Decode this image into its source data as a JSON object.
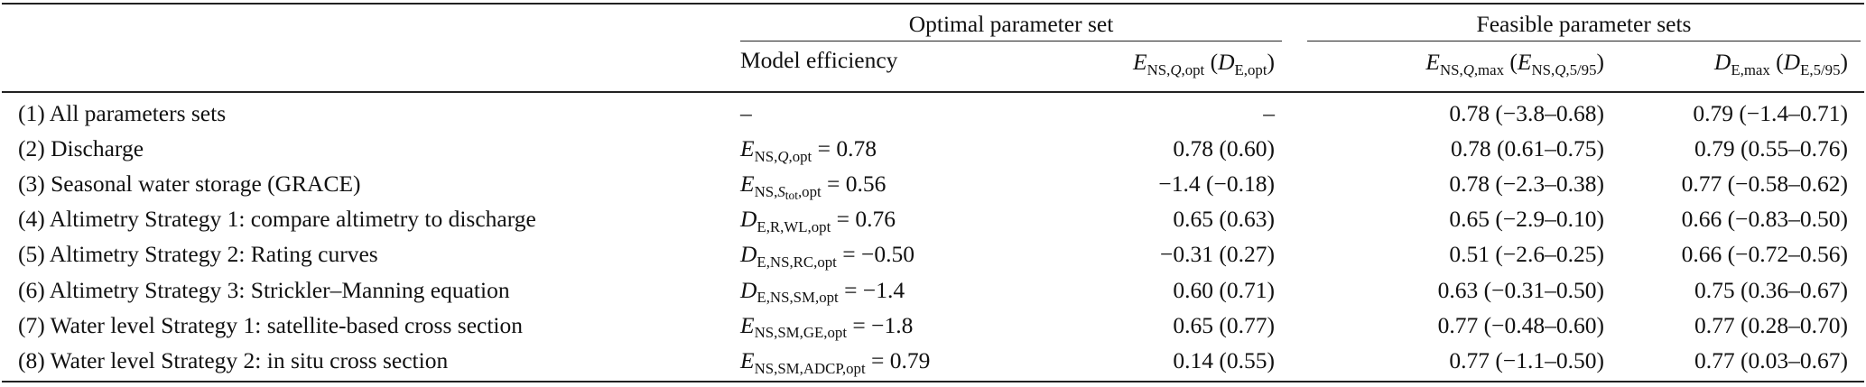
{
  "header": {
    "group_optimal": "Optimal parameter set",
    "group_feasible": "Feasible parameter sets",
    "col_model_efficiency": "Model efficiency",
    "col_ens_opt": "E_NS,Q,opt (D_E,opt)",
    "col_ens_max": "E_NS,Q,max (E_NS,Q,5/95)",
    "col_de_max": "D_E,max (D_E,5/95)"
  },
  "rows": [
    {
      "label": "(1) All parameters sets",
      "efficiency": "–",
      "opt": "–",
      "ens_max": "0.78 (−3.8–0.68)",
      "de_max": "0.79 (−1.4–0.71)"
    },
    {
      "label": "(2) Discharge",
      "efficiency": "E_NS,Q,opt = 0.78",
      "opt": "0.78 (0.60)",
      "ens_max": "0.78 (0.61–0.75)",
      "de_max": "0.79 (0.55–0.76)"
    },
    {
      "label": "(3) Seasonal water storage (GRACE)",
      "efficiency": "E_NS,Stot,opt = 0.56",
      "opt": "−1.4 (−0.18)",
      "ens_max": "0.78 (−2.3–0.38)",
      "de_max": "0.77 (−0.58–0.62)"
    },
    {
      "label": "(4) Altimetry Strategy 1: compare altimetry to discharge",
      "efficiency": "D_E,R,WL,opt = 0.76",
      "opt": "0.65 (0.63)",
      "ens_max": "0.65 (−2.9–0.10)",
      "de_max": "0.66 (−0.83–0.50)"
    },
    {
      "label": "(5) Altimetry Strategy 2: Rating curves",
      "efficiency": "D_E,NS,RC,opt = −0.50",
      "opt": "−0.31 (0.27)",
      "ens_max": "0.51 (−2.6–0.25)",
      "de_max": "0.66 (−0.72–0.56)"
    },
    {
      "label": "(6) Altimetry Strategy 3: Strickler–Manning equation",
      "efficiency": "D_E,NS,SM,opt = −1.4",
      "opt": "0.60 (0.71)",
      "ens_max": "0.63 (−0.31–0.50)",
      "de_max": "0.75 (0.36–0.67)"
    },
    {
      "label": "(7) Water level Strategy 1: satellite-based cross section",
      "efficiency": "E_NS,SM,GE,opt = −1.8",
      "opt": "0.65 (0.77)",
      "ens_max": "0.77 (−0.48–0.60)",
      "de_max": "0.77 (0.28–0.70)"
    },
    {
      "label": "(8) Water level Strategy 2: in situ cross section",
      "efficiency": "E_NS,SM,ADCP,opt = 0.79",
      "opt": "0.14 (0.55)",
      "ens_max": "0.77 (−1.1–0.50)",
      "de_max": "0.77 (0.03–0.67)"
    }
  ]
}
